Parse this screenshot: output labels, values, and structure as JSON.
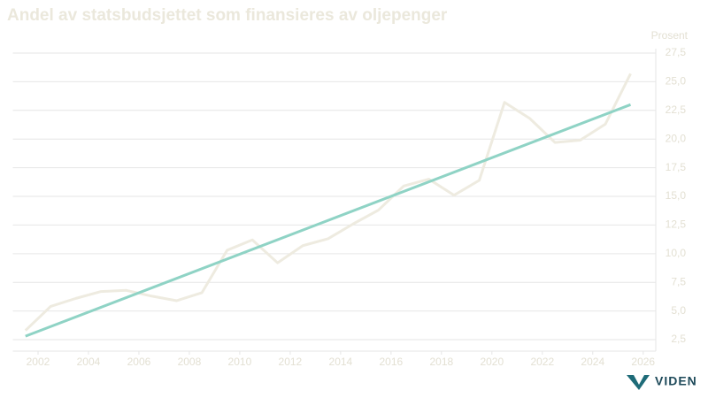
{
  "chart_data": {
    "type": "line",
    "title": "Andel av statsbudsjettet som finansieres av oljepenger",
    "y_label": "Prosent",
    "x": [
      2001.5,
      2002.5,
      2003.5,
      2004.5,
      2005.5,
      2006.5,
      2007.5,
      2008.5,
      2009.5,
      2010.5,
      2011.5,
      2012.5,
      2013.5,
      2014.5,
      2015.5,
      2016.5,
      2017.5,
      2018.5,
      2019.5,
      2020.5,
      2021.5,
      2022.5,
      2023.5,
      2024.5,
      2025.5
    ],
    "series": [
      {
        "color": "#eeebe0",
        "values": [
          3.3,
          5.4,
          6.1,
          6.7,
          6.8,
          6.3,
          5.9,
          6.6,
          10.3,
          11.2,
          9.2,
          10.7,
          11.3,
          12.6,
          13.8,
          15.9,
          16.5,
          15.1,
          16.4,
          23.2,
          21.8,
          19.7,
          19.9,
          21.3,
          25.7
        ]
      },
      {
        "color": "#8fd3c5",
        "x": [
          2001.5,
          2025.5
        ],
        "values": [
          2.8,
          23.0
        ]
      }
    ],
    "xlim": [
      2001,
      2026.5
    ],
    "xticks": [
      2002,
      2004,
      2006,
      2008,
      2010,
      2012,
      2014,
      2016,
      2018,
      2020,
      2022,
      2024,
      2026
    ],
    "ylim": [
      1.5,
      27.5
    ],
    "yticks": [
      {
        "value": 2.5,
        "label": "2,5"
      },
      {
        "value": 5,
        "label": "5,0"
      },
      {
        "value": 7.5,
        "label": "7,5"
      },
      {
        "value": 10,
        "label": "10,0"
      },
      {
        "value": 12.5,
        "label": "12,5"
      },
      {
        "value": 15,
        "label": "15,0"
      },
      {
        "value": 17.5,
        "label": "17,5"
      },
      {
        "value": 20,
        "label": "20,0"
      },
      {
        "value": 22.5,
        "label": "22,5"
      },
      {
        "value": 25,
        "label": "25,0"
      },
      {
        "value": 27.5,
        "label": "27,5"
      }
    ],
    "grid": true,
    "logo": "VIDEN"
  }
}
